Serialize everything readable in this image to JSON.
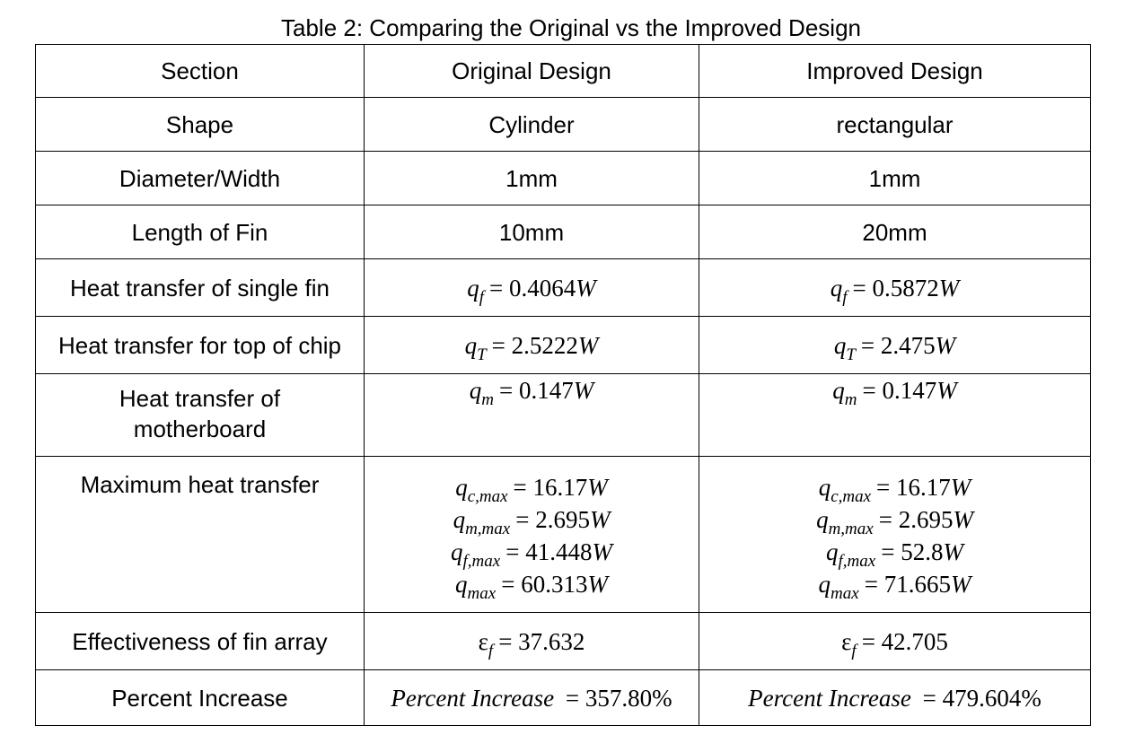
{
  "caption": "Table 2: Comparing the Original vs the Improved Design",
  "header": {
    "section": "Section",
    "original": "Original Design",
    "improved": "Improved Design"
  },
  "rows": {
    "shape": {
      "label": "Shape",
      "original": "Cylinder",
      "improved": "rectangular"
    },
    "diameter": {
      "label": "Diameter/Width",
      "original": "1mm",
      "improved": "1mm"
    },
    "length": {
      "label": "Length of Fin",
      "original": "10mm",
      "improved": "20mm"
    },
    "single_fin": {
      "label": "Heat transfer of single fin",
      "symbol": "q",
      "sub": "f",
      "original": "0.4064",
      "improved": "0.5872",
      "unit": "W"
    },
    "top_chip": {
      "label": "Heat transfer for top of chip",
      "symbol": "q",
      "sub": "T",
      "original": "2.5222",
      "improved": "2.475",
      "unit": "W"
    },
    "motherboard": {
      "label_line1": "Heat transfer of",
      "label_line2": "motherboard",
      "symbol": "q",
      "sub": "m",
      "original": "0.147",
      "improved": "0.147",
      "unit": "W"
    },
    "max_heat": {
      "label": "Maximum heat transfer",
      "symbol": "q",
      "unit": "W",
      "lines": [
        {
          "sub": "c,max",
          "original": "16.17",
          "improved": "16.17"
        },
        {
          "sub": "m,max",
          "original": "2.695",
          "improved": "2.695"
        },
        {
          "sub": "f,max",
          "original": "41.448",
          "improved": "52.8"
        },
        {
          "sub": "max",
          "original": "60.313",
          "improved": "71.665"
        }
      ]
    },
    "effectiveness": {
      "label": "Effectiveness of fin array",
      "symbol": "ε",
      "sub": "f",
      "original": "37.632",
      "improved": "42.705"
    },
    "percent": {
      "label": "Percent Increase",
      "symbol": "Percent Increase",
      "original": "357.80%",
      "improved": "479.604%"
    }
  }
}
